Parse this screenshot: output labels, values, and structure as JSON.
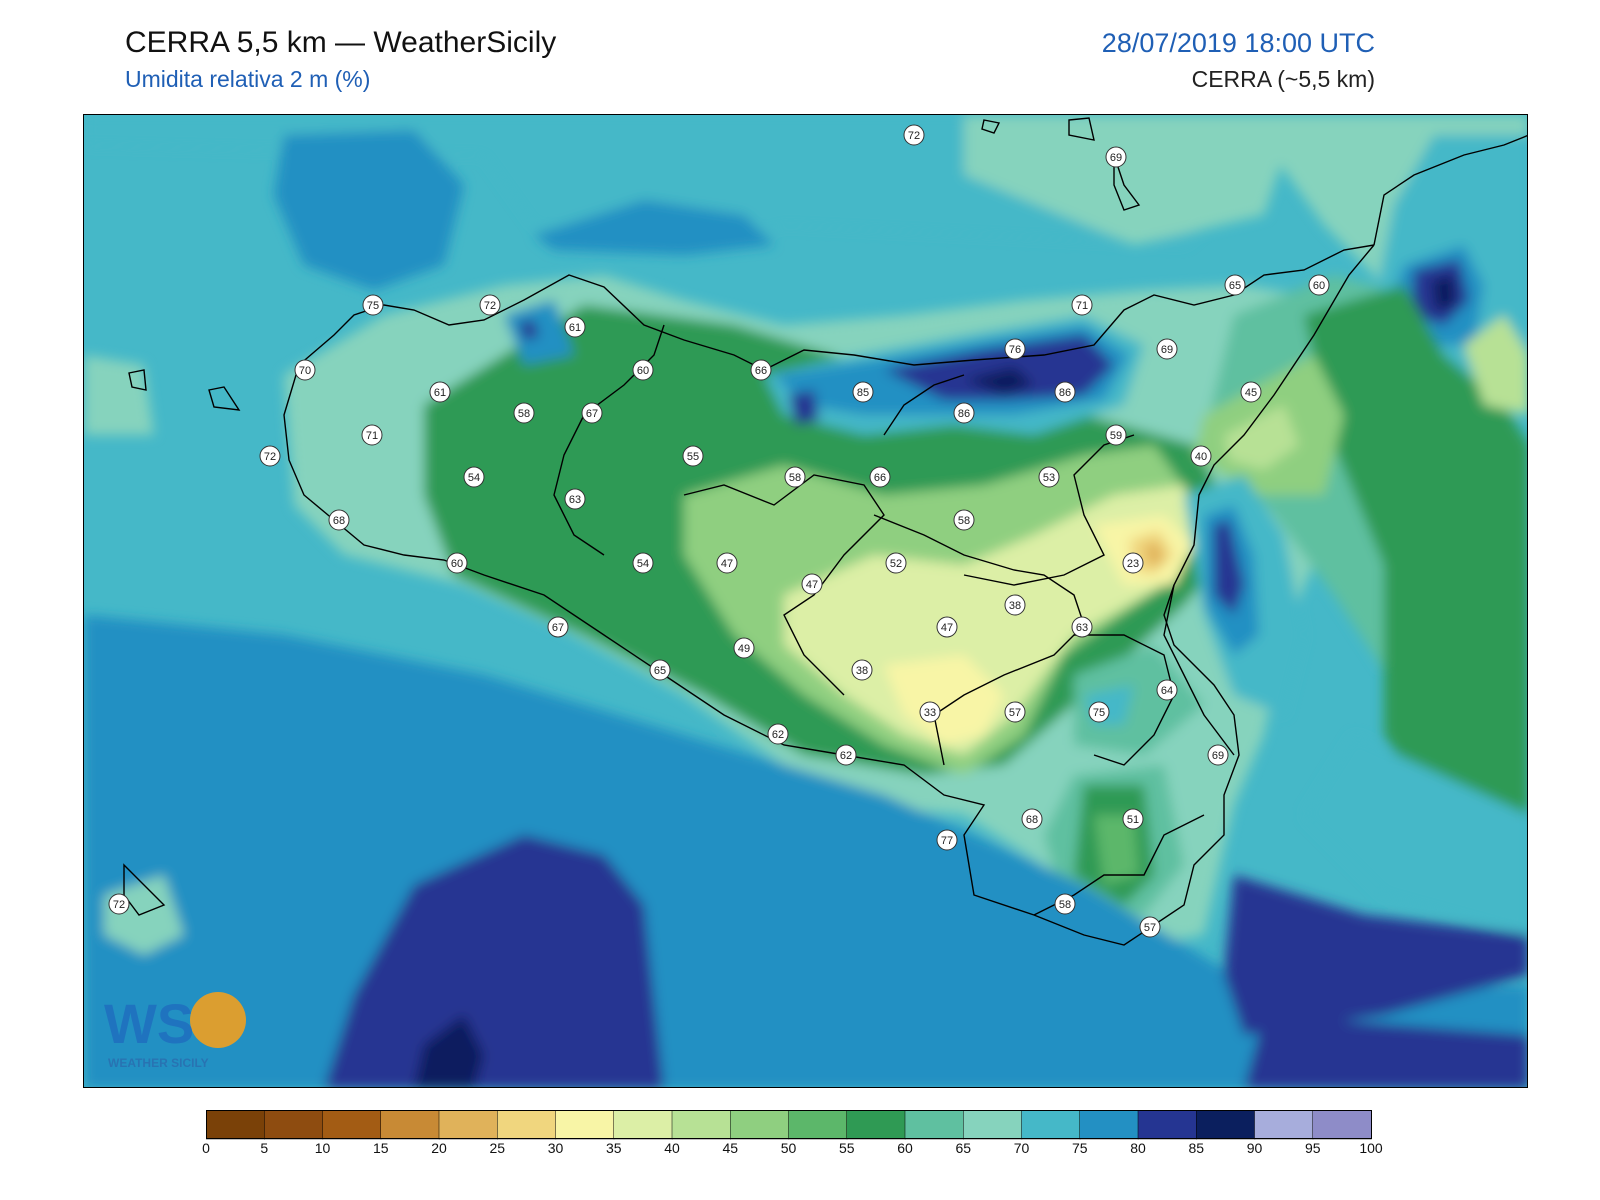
{
  "header": {
    "title": "CERRA 5,5 km — WeatherSicily",
    "subtitle": "Umidita relativa 2 m (%)",
    "datetime": "28/07/2019 18:00 UTC",
    "model": "CERRA (~5,5 km)"
  },
  "colorbar": {
    "ticks": [
      "0",
      "5",
      "10",
      "15",
      "20",
      "25",
      "30",
      "35",
      "40",
      "45",
      "50",
      "55",
      "60",
      "65",
      "70",
      "75",
      "80",
      "85",
      "90",
      "95",
      "100"
    ],
    "colors": [
      "#7a4108",
      "#8e4c10",
      "#a35c14",
      "#c88a35",
      "#e0b25a",
      "#f0d67e",
      "#f8f5a6",
      "#dcefa6",
      "#b7e195",
      "#8fcf80",
      "#5cb76a",
      "#2f9a54",
      "#5fc0a0",
      "#86d3bd",
      "#45b8c8",
      "#2390c3",
      "#253592",
      "#0b1f5e",
      "#a7addc",
      "#8e8cc8"
    ]
  },
  "map": {
    "labels": [
      {
        "v": "72"
      },
      {
        "v": "69"
      },
      {
        "v": "75"
      },
      {
        "v": "72"
      },
      {
        "v": "61"
      },
      {
        "v": "65"
      },
      {
        "v": "60"
      },
      {
        "v": "71"
      },
      {
        "v": "70"
      },
      {
        "v": "61"
      },
      {
        "v": "60"
      },
      {
        "v": "66"
      },
      {
        "v": "85"
      },
      {
        "v": "76"
      },
      {
        "v": "69"
      },
      {
        "v": "86"
      },
      {
        "v": "86"
      },
      {
        "v": "58"
      },
      {
        "v": "67"
      },
      {
        "v": "71"
      },
      {
        "v": "72"
      },
      {
        "v": "55"
      },
      {
        "v": "59"
      },
      {
        "v": "45"
      },
      {
        "v": "40"
      },
      {
        "v": "54"
      },
      {
        "v": "63"
      },
      {
        "v": "58"
      },
      {
        "v": "66"
      },
      {
        "v": "53"
      },
      {
        "v": "68"
      },
      {
        "v": "58"
      },
      {
        "v": "60"
      },
      {
        "v": "54"
      },
      {
        "v": "47"
      },
      {
        "v": "47"
      },
      {
        "v": "52"
      },
      {
        "v": "23"
      },
      {
        "v": "38"
      },
      {
        "v": "67"
      },
      {
        "v": "47"
      },
      {
        "v": "63"
      },
      {
        "v": "49"
      },
      {
        "v": "38"
      },
      {
        "v": "65"
      },
      {
        "v": "64"
      },
      {
        "v": "33"
      },
      {
        "v": "57"
      },
      {
        "v": "75"
      },
      {
        "v": "62"
      },
      {
        "v": "62"
      },
      {
        "v": "69"
      },
      {
        "v": "68"
      },
      {
        "v": "51"
      },
      {
        "v": "77"
      },
      {
        "v": "72"
      },
      {
        "v": "58"
      },
      {
        "v": "57"
      }
    ]
  },
  "logo": {
    "letters": "WS",
    "caption": "WEATHER SICILY"
  }
}
